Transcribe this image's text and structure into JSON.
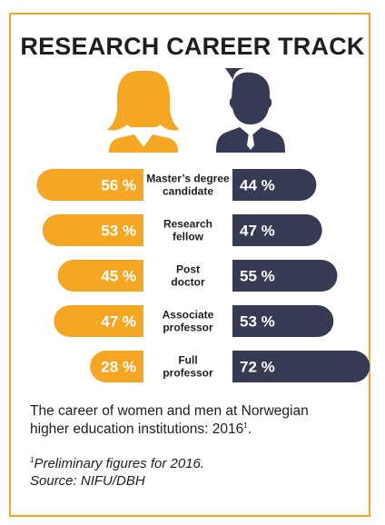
{
  "title": "RESEARCH CAREER TRACK",
  "caption": {
    "text": "The career of women and men at Norwegian higher education institutions: 2016",
    "superscript": "1",
    "suffix": "."
  },
  "footnote": {
    "marker": "1",
    "line1": "Preliminary figures for 2016.",
    "line2": "Source: NIFU/DBH"
  },
  "colors": {
    "frame": "#f5a623",
    "women": "#f5a623",
    "men": "#363a52",
    "text": "#1e1e1e"
  },
  "icons": {
    "women": "woman-silhouette-icon",
    "men": "man-silhouette-icon"
  },
  "chart_data": {
    "type": "bar",
    "orientation": "diverging-horizontal",
    "categories": [
      [
        "Master’s degree",
        "candidate"
      ],
      [
        "Research",
        "fellow"
      ],
      [
        "Post",
        "doctor"
      ],
      [
        "Associate",
        "professor"
      ],
      [
        "Full",
        "professor"
      ]
    ],
    "series": [
      {
        "values": [
          56,
          53,
          45,
          47,
          28
        ],
        "labels": [
          "56 %",
          "53 %",
          "45 %",
          "47 %",
          "28 %"
        ],
        "color": "#f5a623"
      },
      {
        "values": [
          44,
          47,
          55,
          53,
          72
        ],
        "labels": [
          "44 %",
          "47 %",
          "55 %",
          "53 %",
          "72 %"
        ],
        "color": "#363a52"
      }
    ],
    "xlim": [
      0,
      100
    ],
    "grid": false,
    "legend": "none",
    "value_unit": "%"
  }
}
